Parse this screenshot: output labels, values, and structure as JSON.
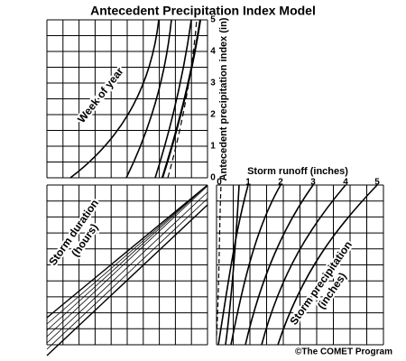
{
  "title": "Antecedent Precipitation Index Model",
  "api_panel": {
    "axis_label": "Antecedent precipitation index (in)",
    "ticks": [
      0,
      1,
      2,
      3,
      4,
      5
    ],
    "curve_label": "Week of year"
  },
  "duration_panel": {
    "label": [
      "Storm duration",
      "(hours)"
    ]
  },
  "runoff_panel": {
    "axis_label": "Storm runoff (inches)",
    "ticks": [
      0,
      1,
      2,
      3,
      4,
      5
    ],
    "curve_label": [
      "Storm precipitation",
      "(inches)"
    ]
  },
  "credit": "©The COMET Program"
}
